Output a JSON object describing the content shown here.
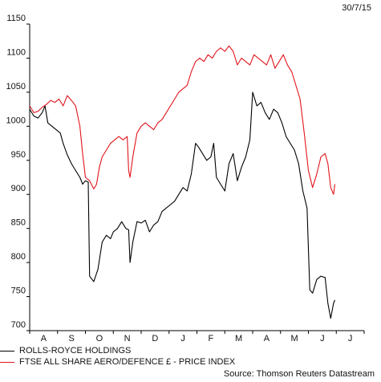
{
  "date_label": "30/7/15",
  "source_label": "Source: Thomson Reuters Datastream",
  "chart_data": {
    "type": "line",
    "ylim": [
      700,
      1150
    ],
    "yticks": [
      700,
      750,
      800,
      850,
      900,
      950,
      1000,
      1050,
      1100,
      1150
    ],
    "months": [
      "A",
      "S",
      "O",
      "N",
      "D",
      "J",
      "F",
      "M",
      "A",
      "M",
      "J",
      "J"
    ],
    "grid": false,
    "legend_position": "bottom-left",
    "series": [
      {
        "name": "ROLLS-ROYCE HOLDINGS",
        "color": "#000000",
        "points": [
          [
            0.0,
            1025
          ],
          [
            0.15,
            1015
          ],
          [
            0.3,
            1012
          ],
          [
            0.45,
            1020
          ],
          [
            0.55,
            1030
          ],
          [
            0.65,
            1005
          ],
          [
            0.8,
            1000
          ],
          [
            0.95,
            995
          ],
          [
            1.1,
            990
          ],
          [
            1.2,
            975
          ],
          [
            1.35,
            958
          ],
          [
            1.5,
            945
          ],
          [
            1.65,
            935
          ],
          [
            1.8,
            925
          ],
          [
            1.9,
            915
          ],
          [
            2.0,
            920
          ],
          [
            2.1,
            918
          ],
          [
            2.15,
            780
          ],
          [
            2.3,
            772
          ],
          [
            2.45,
            790
          ],
          [
            2.6,
            830
          ],
          [
            2.75,
            840
          ],
          [
            2.9,
            835
          ],
          [
            3.0,
            845
          ],
          [
            3.15,
            850
          ],
          [
            3.3,
            860
          ],
          [
            3.45,
            850
          ],
          [
            3.55,
            848
          ],
          [
            3.6,
            800
          ],
          [
            3.7,
            830
          ],
          [
            3.85,
            860
          ],
          [
            4.0,
            858
          ],
          [
            4.15,
            862
          ],
          [
            4.3,
            845
          ],
          [
            4.45,
            855
          ],
          [
            4.6,
            860
          ],
          [
            4.75,
            875
          ],
          [
            4.9,
            880
          ],
          [
            5.05,
            885
          ],
          [
            5.2,
            890
          ],
          [
            5.35,
            900
          ],
          [
            5.5,
            910
          ],
          [
            5.65,
            905
          ],
          [
            5.8,
            930
          ],
          [
            5.95,
            975
          ],
          [
            6.05,
            970
          ],
          [
            6.2,
            960
          ],
          [
            6.35,
            950
          ],
          [
            6.5,
            955
          ],
          [
            6.6,
            975
          ],
          [
            6.7,
            925
          ],
          [
            6.85,
            915
          ],
          [
            7.0,
            905
          ],
          [
            7.15,
            945
          ],
          [
            7.3,
            960
          ],
          [
            7.45,
            920
          ],
          [
            7.6,
            940
          ],
          [
            7.75,
            955
          ],
          [
            7.9,
            980
          ],
          [
            8.0,
            1050
          ],
          [
            8.15,
            1030
          ],
          [
            8.3,
            1035
          ],
          [
            8.45,
            1020
          ],
          [
            8.6,
            1010
          ],
          [
            8.75,
            1025
          ],
          [
            8.9,
            1020
          ],
          [
            9.05,
            1005
          ],
          [
            9.2,
            985
          ],
          [
            9.35,
            975
          ],
          [
            9.5,
            965
          ],
          [
            9.65,
            945
          ],
          [
            9.8,
            905
          ],
          [
            9.95,
            880
          ],
          [
            10.05,
            760
          ],
          [
            10.15,
            755
          ],
          [
            10.3,
            775
          ],
          [
            10.45,
            780
          ],
          [
            10.6,
            778
          ],
          [
            10.7,
            740
          ],
          [
            10.8,
            718
          ],
          [
            10.9,
            740
          ],
          [
            10.95,
            745
          ]
        ]
      },
      {
        "name": "FTSE ALL SHARE AERO/DEFENCE £ - PRICE INDEX",
        "color": "#e0141b",
        "points": [
          [
            0.0,
            1030
          ],
          [
            0.15,
            1020
          ],
          [
            0.3,
            1022
          ],
          [
            0.45,
            1028
          ],
          [
            0.6,
            1032
          ],
          [
            0.75,
            1038
          ],
          [
            0.9,
            1035
          ],
          [
            1.05,
            1040
          ],
          [
            1.2,
            1030
          ],
          [
            1.35,
            1045
          ],
          [
            1.5,
            1038
          ],
          [
            1.65,
            1030
          ],
          [
            1.8,
            1000
          ],
          [
            1.9,
            960
          ],
          [
            2.0,
            925
          ],
          [
            2.15,
            920
          ],
          [
            2.3,
            908
          ],
          [
            2.4,
            915
          ],
          [
            2.5,
            940
          ],
          [
            2.6,
            955
          ],
          [
            2.75,
            965
          ],
          [
            2.9,
            975
          ],
          [
            3.05,
            980
          ],
          [
            3.2,
            985
          ],
          [
            3.35,
            980
          ],
          [
            3.5,
            985
          ],
          [
            3.55,
            935
          ],
          [
            3.6,
            925
          ],
          [
            3.7,
            955
          ],
          [
            3.85,
            990
          ],
          [
            4.0,
            1000
          ],
          [
            4.15,
            1005
          ],
          [
            4.3,
            1000
          ],
          [
            4.45,
            995
          ],
          [
            4.6,
            1005
          ],
          [
            4.75,
            1010
          ],
          [
            4.9,
            1020
          ],
          [
            5.05,
            1030
          ],
          [
            5.2,
            1040
          ],
          [
            5.35,
            1050
          ],
          [
            5.5,
            1055
          ],
          [
            5.65,
            1060
          ],
          [
            5.8,
            1080
          ],
          [
            5.95,
            1095
          ],
          [
            6.1,
            1100
          ],
          [
            6.25,
            1095
          ],
          [
            6.4,
            1105
          ],
          [
            6.55,
            1100
          ],
          [
            6.7,
            1110
          ],
          [
            6.85,
            1115
          ],
          [
            7.0,
            1110
          ],
          [
            7.15,
            1118
          ],
          [
            7.3,
            1110
          ],
          [
            7.45,
            1090
          ],
          [
            7.6,
            1100
          ],
          [
            7.75,
            1095
          ],
          [
            7.9,
            1090
          ],
          [
            8.05,
            1105
          ],
          [
            8.2,
            1100
          ],
          [
            8.35,
            1095
          ],
          [
            8.5,
            1090
          ],
          [
            8.65,
            1105
          ],
          [
            8.8,
            1085
          ],
          [
            8.95,
            1095
          ],
          [
            9.1,
            1105
          ],
          [
            9.25,
            1090
          ],
          [
            9.4,
            1080
          ],
          [
            9.55,
            1060
          ],
          [
            9.7,
            1040
          ],
          [
            9.85,
            990
          ],
          [
            10.0,
            935
          ],
          [
            10.15,
            910
          ],
          [
            10.3,
            930
          ],
          [
            10.45,
            955
          ],
          [
            10.6,
            960
          ],
          [
            10.7,
            945
          ],
          [
            10.8,
            910
          ],
          [
            10.9,
            900
          ],
          [
            10.95,
            915
          ]
        ]
      }
    ]
  }
}
